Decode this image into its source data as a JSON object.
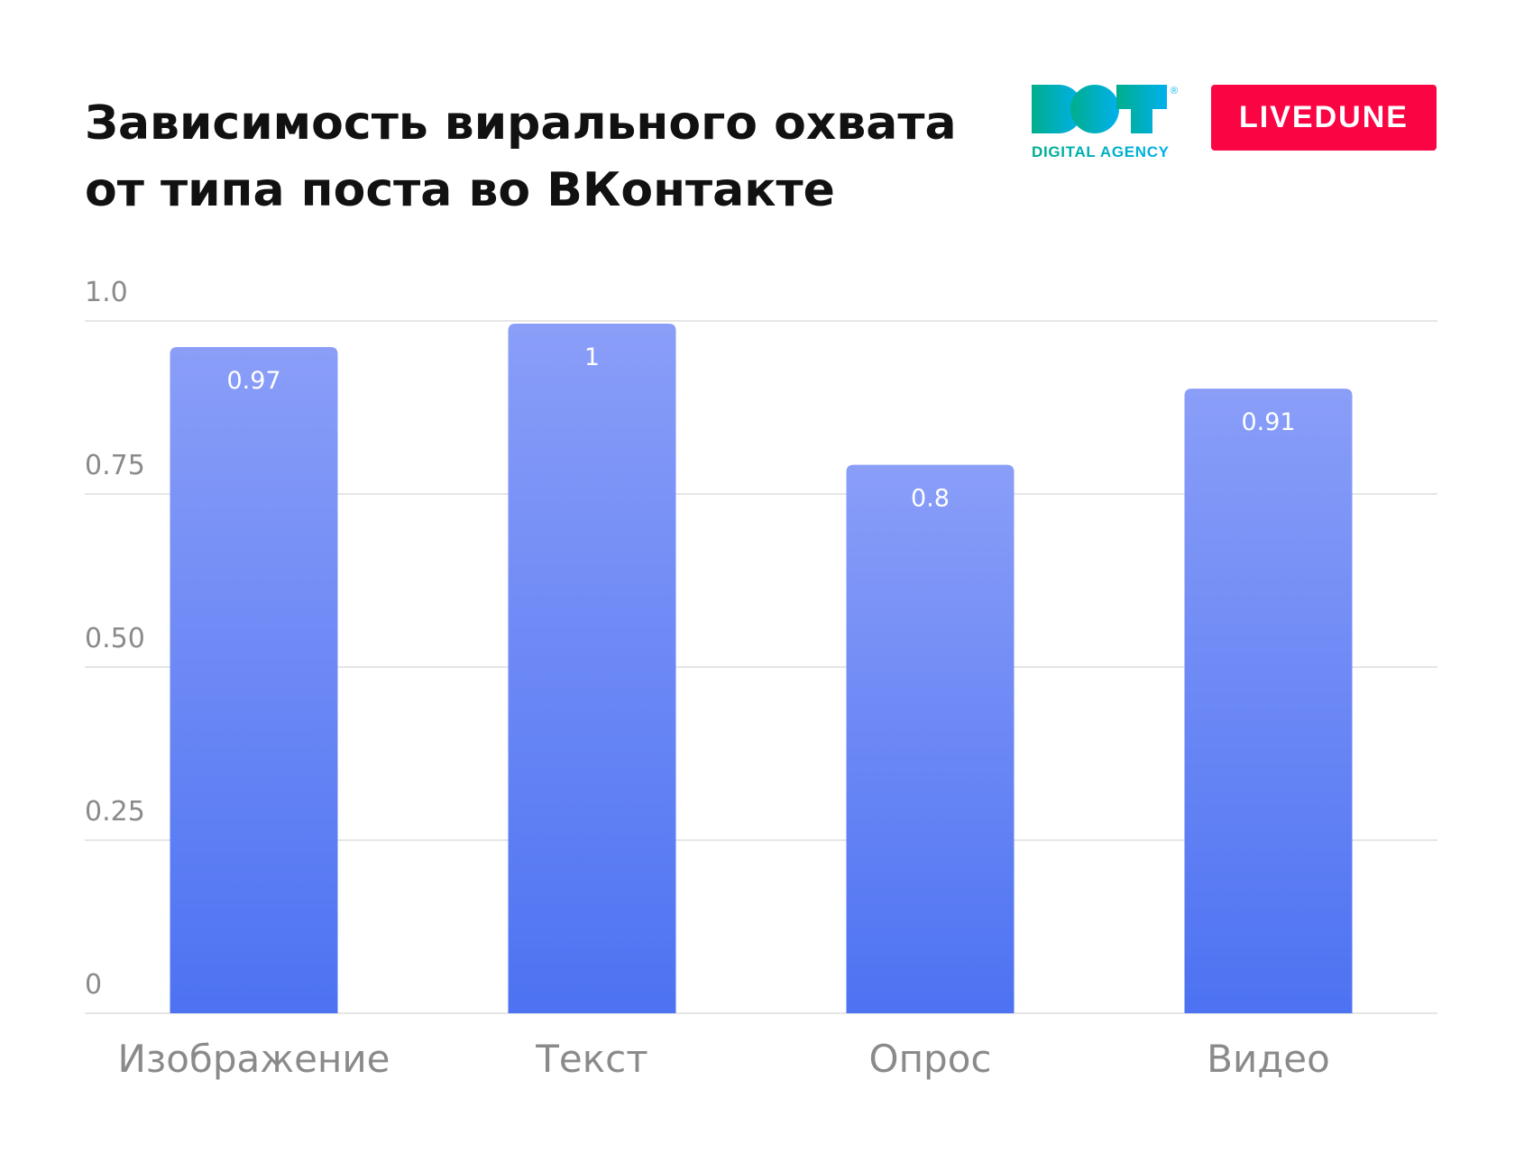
{
  "title_lines": [
    "Зависимость вирального охвата",
    "от типа поста во ВКонтакте"
  ],
  "logos": {
    "dot": "DOT",
    "dot_sub": "DIGITAL AGENCY",
    "dot_reg": "®",
    "livedune": "LIVEDUNE"
  },
  "colors": {
    "bar_top": "#8a9ef8",
    "bar_bottom": "#4d72f2",
    "grid": "#e6e6e6",
    "tick": "#8a8a8a",
    "livedune": "#fb0444"
  },
  "chart_data": {
    "type": "bar",
    "title": "Зависимость вирального охвата от типа поста во ВКонтакте",
    "categories": [
      "Изображение",
      "Текст",
      "Опрос",
      "Видео"
    ],
    "values": [
      0.97,
      1,
      0.8,
      0.91
    ],
    "value_labels": [
      "0.97",
      "1",
      "0.8",
      "0.91"
    ],
    "yticks": [
      0,
      0.25,
      0.5,
      0.75,
      1.0
    ],
    "ytick_labels": [
      "0",
      "0.25",
      "0.50",
      "0.75",
      "1.0"
    ],
    "ylim": [
      0,
      1
    ],
    "xlabel": "",
    "ylabel": "",
    "grid": true
  }
}
